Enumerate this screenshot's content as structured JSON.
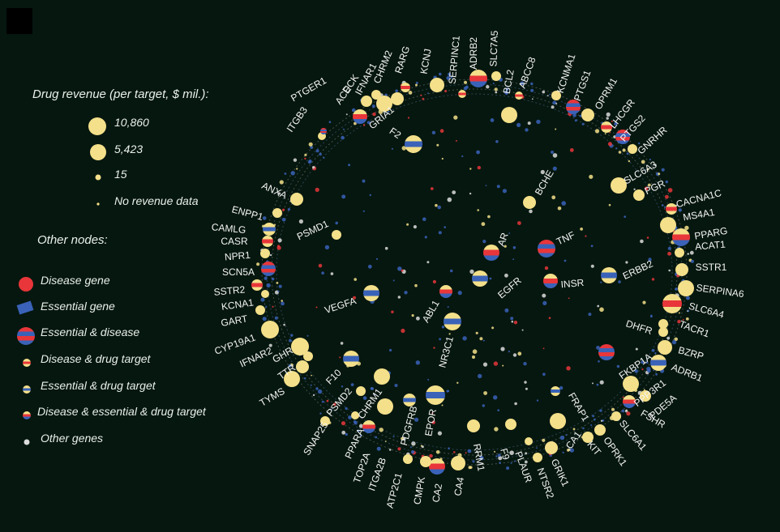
{
  "legend": {
    "revenue_title": "Drug revenue (per target, $ mil.):",
    "revenue_items": [
      "10,860",
      "5,423",
      "15",
      "No revenue data"
    ],
    "other_title": "Other nodes:",
    "other_items": [
      "Disease gene",
      "Essential gene",
      "Essential & disease",
      "Disease & drug target",
      "Essential & drug target",
      "Disease & essential & drug target",
      "Other genes"
    ]
  },
  "colors": {
    "background": "#06170f",
    "drug": "#f4e08a",
    "disease": "#e8363a",
    "essential": "#3a62b8",
    "other": "#dcdcdc"
  },
  "network": {
    "outer_labels": [
      "PTGER1",
      "ITGB3",
      "ACE",
      "DCK",
      "IFNAR1",
      "CHRM2",
      "GRIA1",
      "RARG",
      "KCNJ",
      "SERPINC1",
      "ADRB2",
      "SLC7A5",
      "BCL2",
      "ABCC8",
      "KCNMA1",
      "PTGS1",
      "OPRM1",
      "LHCGR",
      "PTGS2",
      "GNRHR",
      "SLC6A3",
      "PGR",
      "CACNA1C",
      "MS4A1",
      "PPARG",
      "ACAT1",
      "SSTR1",
      "SERPINA6",
      "SLC6A4",
      "TACR1",
      "DHFR",
      "BZRP",
      "ADRB1",
      "FKBP1A",
      "PPP3R1",
      "PDE5A",
      "FSHR",
      "SLC6A1",
      "OPRK1",
      "KIT",
      "CA1",
      "FRAP1",
      "GRIK1",
      "NTSR2",
      "PLAUR",
      "F9",
      "RRM1",
      "CA4",
      "CA2",
      "CMPK",
      "EPOR",
      "ATP2C1",
      "PDGFRB",
      "ITGA2B",
      "TOP2A",
      "PPARA",
      "SNAP25",
      "CHRM1",
      "PSMD2",
      "F10",
      "TYMS",
      "TTR",
      "GHR",
      "IFNAR2",
      "CYP19A1",
      "GART",
      "KCNA1",
      "SSTR2",
      "SCN5A",
      "NPR1",
      "CASR",
      "CAMLG",
      "ENPP1",
      "ANXA"
    ],
    "inner_labels": [
      "F2",
      "BCHE",
      "AR",
      "TNF",
      "EGFR",
      "INSR",
      "ERBB2",
      "PSMD1",
      "VEGFA",
      "ABL1",
      "NR3C1"
    ]
  }
}
